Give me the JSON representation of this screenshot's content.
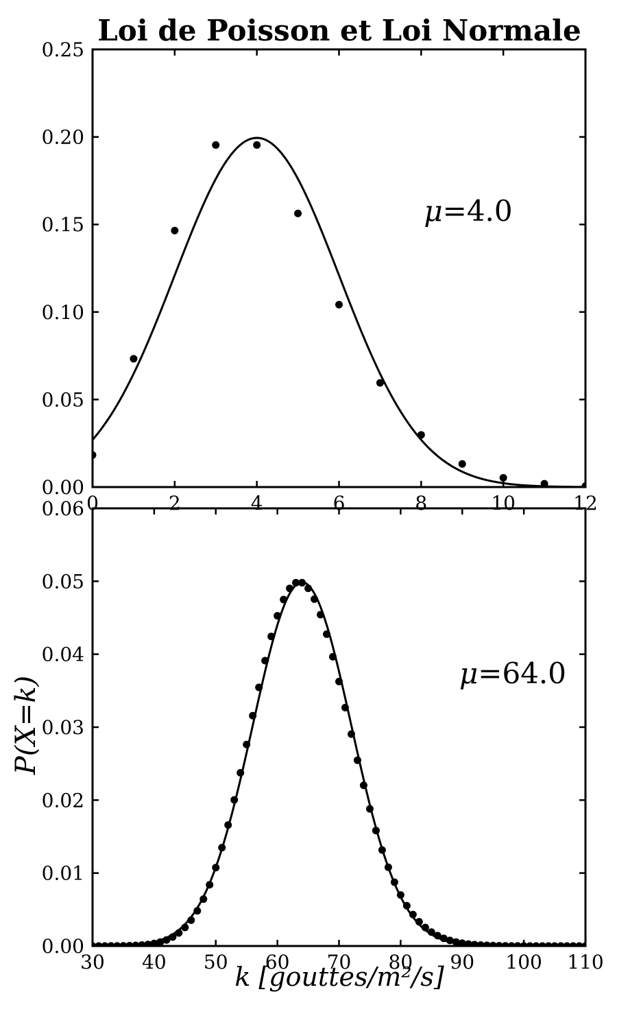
{
  "figure": {
    "title": "Loi de Poisson et Loi Normale",
    "xlabel": "k [gouttes/m²/s]",
    "ylabel": "P(X=k)",
    "background_color": "#ffffff",
    "ink_color": "#000000"
  },
  "chart_data": [
    {
      "type": "scatter+line",
      "annotation": "μ=4.0",
      "xlim": [
        0,
        12
      ],
      "ylim": [
        0,
        0.25
      ],
      "xtick_values": [
        0,
        2,
        4,
        6,
        8,
        10,
        12
      ],
      "xtick_labels": [
        "0",
        "2",
        "4",
        "6",
        "8",
        "10",
        "12"
      ],
      "ytick_values": [
        0.0,
        0.05,
        0.1,
        0.15,
        0.2,
        0.25
      ],
      "ytick_labels": [
        "0.00",
        "0.05",
        "0.10",
        "0.15",
        "0.20",
        "0.25"
      ],
      "grid": false,
      "legend": false,
      "poisson_points": {
        "distribution": "poisson",
        "mu": 4.0,
        "k": [
          0,
          1,
          2,
          3,
          4,
          5,
          6,
          7,
          8,
          9,
          10,
          11,
          12
        ],
        "p": [
          0.0183,
          0.0733,
          0.1465,
          0.1954,
          0.1954,
          0.1563,
          0.1042,
          0.0595,
          0.0298,
          0.0132,
          0.0053,
          0.0019,
          0.0006
        ]
      },
      "curve": {
        "type": "normal-pdf",
        "mu": 4.0,
        "sigma": 2.0,
        "x_range": [
          0,
          12
        ],
        "peak_value": 0.1995
      }
    },
    {
      "type": "scatter+line",
      "annotation": "μ=64.0",
      "xlim": [
        30,
        110
      ],
      "ylim": [
        0,
        0.06
      ],
      "xtick_values": [
        30,
        40,
        50,
        60,
        70,
        80,
        90,
        100,
        110
      ],
      "xtick_labels": [
        "30",
        "40",
        "50",
        "60",
        "70",
        "80",
        "90",
        "100",
        "110"
      ],
      "ytick_values": [
        0.0,
        0.01,
        0.02,
        0.03,
        0.04,
        0.05,
        0.06
      ],
      "ytick_labels": [
        "0.00",
        "0.01",
        "0.02",
        "0.03",
        "0.04",
        "0.05",
        "0.06"
      ],
      "grid": false,
      "legend": false,
      "poisson_points": {
        "distribution": "poisson",
        "mu": 64.0,
        "k_min": 30,
        "k_max": 110,
        "peak_value": 0.0498
      },
      "curve": {
        "type": "normal-pdf",
        "mu": 64.0,
        "sigma": 8.0,
        "x_range": [
          30,
          110
        ],
        "peak_value": 0.0499
      }
    }
  ]
}
